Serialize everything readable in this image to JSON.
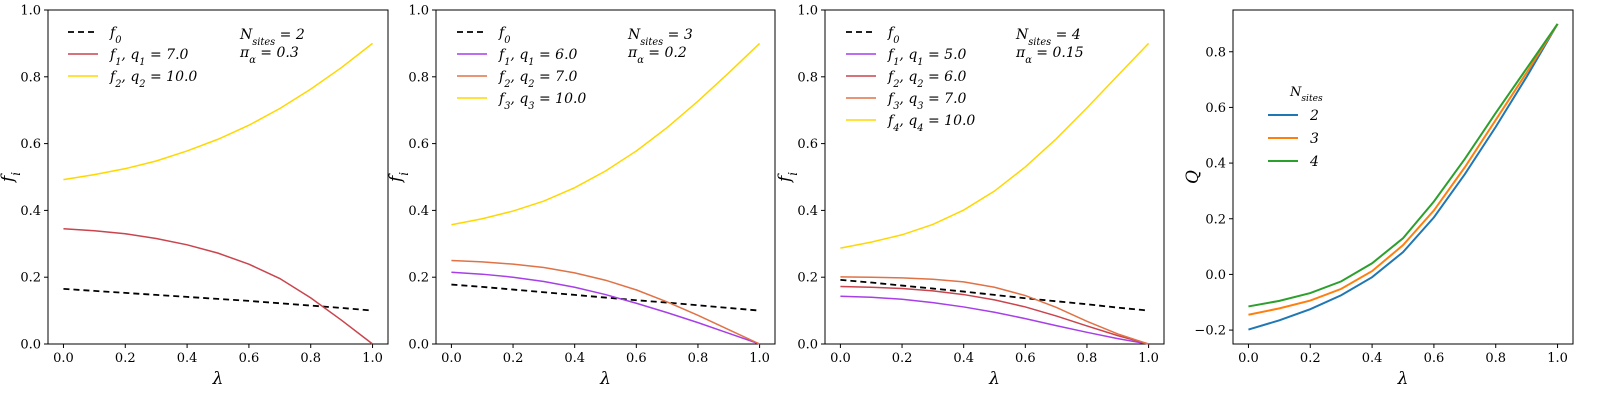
{
  "chart_data": [
    {
      "type": "line",
      "xlabel": "λ",
      "ylabel": "f_i",
      "xlim": [
        -0.05,
        1.05
      ],
      "ylim": [
        0.0,
        1.0
      ],
      "xticks": [
        "0.0",
        "0.2",
        "0.4",
        "0.6",
        "0.8",
        "1.0"
      ],
      "yticks": [
        "0.0",
        "0.2",
        "0.4",
        "0.6",
        "0.8",
        "1.0"
      ],
      "grid": false,
      "legend_position": "top-left",
      "annotation": [
        "N_sites = 2",
        "π_α = 0.3"
      ],
      "x": [
        0.0,
        0.1,
        0.2,
        0.3,
        0.4,
        0.5,
        0.6,
        0.7,
        0.8,
        0.9,
        1.0
      ],
      "series": [
        {
          "name": "f_0",
          "color": "#000000",
          "dashed": true,
          "values": [
            0.165,
            0.159,
            0.153,
            0.147,
            0.141,
            0.135,
            0.129,
            0.122,
            0.115,
            0.108,
            0.1
          ]
        },
        {
          "name": "f_1, q_1 = 7.0",
          "color": "#c9444d",
          "values": [
            0.345,
            0.339,
            0.33,
            0.316,
            0.297,
            0.272,
            0.239,
            0.196,
            0.138,
            0.071,
            0.0
          ]
        },
        {
          "name": "f_2, q_2 = 10.0",
          "color": "#ffd700",
          "values": [
            0.492,
            0.507,
            0.525,
            0.548,
            0.578,
            0.613,
            0.655,
            0.705,
            0.763,
            0.828,
            0.9
          ]
        }
      ]
    },
    {
      "type": "line",
      "xlabel": "λ",
      "ylabel": "f_i",
      "xlim": [
        -0.05,
        1.05
      ],
      "ylim": [
        0.0,
        1.0
      ],
      "xticks": [
        "0.0",
        "0.2",
        "0.4",
        "0.6",
        "0.8",
        "1.0"
      ],
      "yticks": [
        "0.0",
        "0.2",
        "0.4",
        "0.6",
        "0.8",
        "1.0"
      ],
      "grid": false,
      "legend_position": "top-left",
      "annotation": [
        "N_sites = 3",
        "π_α = 0.2"
      ],
      "x": [
        0.0,
        0.1,
        0.2,
        0.3,
        0.4,
        0.5,
        0.6,
        0.7,
        0.8,
        0.9,
        1.0
      ],
      "series": [
        {
          "name": "f_0",
          "color": "#000000",
          "dashed": true,
          "values": [
            0.178,
            0.171,
            0.163,
            0.155,
            0.147,
            0.139,
            0.131,
            0.124,
            0.116,
            0.108,
            0.1
          ]
        },
        {
          "name": "f_1, q_1 = 6.0",
          "color": "#a63fe8",
          "values": [
            0.215,
            0.209,
            0.2,
            0.187,
            0.17,
            0.148,
            0.122,
            0.094,
            0.064,
            0.032,
            0.0
          ]
        },
        {
          "name": "f_2, q_2 = 7.0",
          "color": "#e07246",
          "values": [
            0.25,
            0.246,
            0.239,
            0.229,
            0.213,
            0.191,
            0.162,
            0.126,
            0.086,
            0.043,
            0.0
          ]
        },
        {
          "name": "f_3, q_3 = 10.0",
          "color": "#ffd700",
          "values": [
            0.357,
            0.375,
            0.398,
            0.428,
            0.468,
            0.518,
            0.578,
            0.648,
            0.727,
            0.812,
            0.9
          ]
        }
      ]
    },
    {
      "type": "line",
      "xlabel": "λ",
      "ylabel": "f_i",
      "xlim": [
        -0.05,
        1.05
      ],
      "ylim": [
        0.0,
        1.0
      ],
      "xticks": [
        "0.0",
        "0.2",
        "0.4",
        "0.6",
        "0.8",
        "1.0"
      ],
      "yticks": [
        "0.0",
        "0.2",
        "0.4",
        "0.6",
        "0.8",
        "1.0"
      ],
      "grid": false,
      "legend_position": "top-left",
      "annotation": [
        "N_sites = 4",
        "π_α = 0.15"
      ],
      "x": [
        0.0,
        0.1,
        0.2,
        0.3,
        0.4,
        0.5,
        0.6,
        0.7,
        0.8,
        0.9,
        1.0
      ],
      "series": [
        {
          "name": "f_0",
          "color": "#000000",
          "dashed": true,
          "values": [
            0.192,
            0.184,
            0.175,
            0.166,
            0.157,
            0.147,
            0.137,
            0.128,
            0.119,
            0.109,
            0.1
          ]
        },
        {
          "name": "f_1, q_1 = 5.0",
          "color": "#a63fe8",
          "values": [
            0.143,
            0.14,
            0.134,
            0.124,
            0.111,
            0.095,
            0.076,
            0.055,
            0.035,
            0.016,
            0.0
          ]
        },
        {
          "name": "f_2, q_2 = 6.0",
          "color": "#c9444d",
          "values": [
            0.172,
            0.17,
            0.166,
            0.159,
            0.148,
            0.132,
            0.111,
            0.084,
            0.054,
            0.025,
            0.0
          ]
        },
        {
          "name": "f_3, q_3 = 7.0",
          "color": "#e07246",
          "values": [
            0.201,
            0.2,
            0.198,
            0.194,
            0.186,
            0.17,
            0.145,
            0.11,
            0.068,
            0.03,
            0.0
          ]
        },
        {
          "name": "f_4, q_4 = 10.0",
          "color": "#ffd700",
          "values": [
            0.287,
            0.305,
            0.327,
            0.358,
            0.401,
            0.458,
            0.53,
            0.614,
            0.707,
            0.804,
            0.9
          ]
        }
      ]
    },
    {
      "type": "line",
      "xlabel": "λ",
      "ylabel": "Q",
      "xlim": [
        -0.05,
        1.05
      ],
      "ylim": [
        -0.25,
        0.95
      ],
      "xticks": [
        "0.0",
        "0.2",
        "0.4",
        "0.6",
        "0.8",
        "1.0"
      ],
      "yticks": [
        "−0.2",
        "0.0",
        "0.2",
        "0.4",
        "0.6",
        "0.8"
      ],
      "ytick_values": [
        -0.2,
        0.0,
        0.2,
        0.4,
        0.6,
        0.8
      ],
      "grid": false,
      "legend_position": "upper-left",
      "legend_title": "N_sites",
      "x": [
        0.0,
        0.1,
        0.2,
        0.3,
        0.4,
        0.5,
        0.6,
        0.7,
        0.8,
        0.9,
        1.0
      ],
      "series": [
        {
          "name": "2",
          "color": "#1f77b4",
          "values": [
            -0.198,
            -0.165,
            -0.125,
            -0.075,
            -0.01,
            0.08,
            0.205,
            0.36,
            0.53,
            0.71,
            0.9
          ]
        },
        {
          "name": "3",
          "color": "#ff7f0e",
          "values": [
            -0.145,
            -0.122,
            -0.094,
            -0.052,
            0.012,
            0.105,
            0.23,
            0.385,
            0.555,
            0.725,
            0.9
          ]
        },
        {
          "name": "4",
          "color": "#2ca02c",
          "values": [
            -0.115,
            -0.095,
            -0.067,
            -0.025,
            0.04,
            0.13,
            0.262,
            0.415,
            0.58,
            0.74,
            0.9
          ]
        }
      ]
    }
  ]
}
